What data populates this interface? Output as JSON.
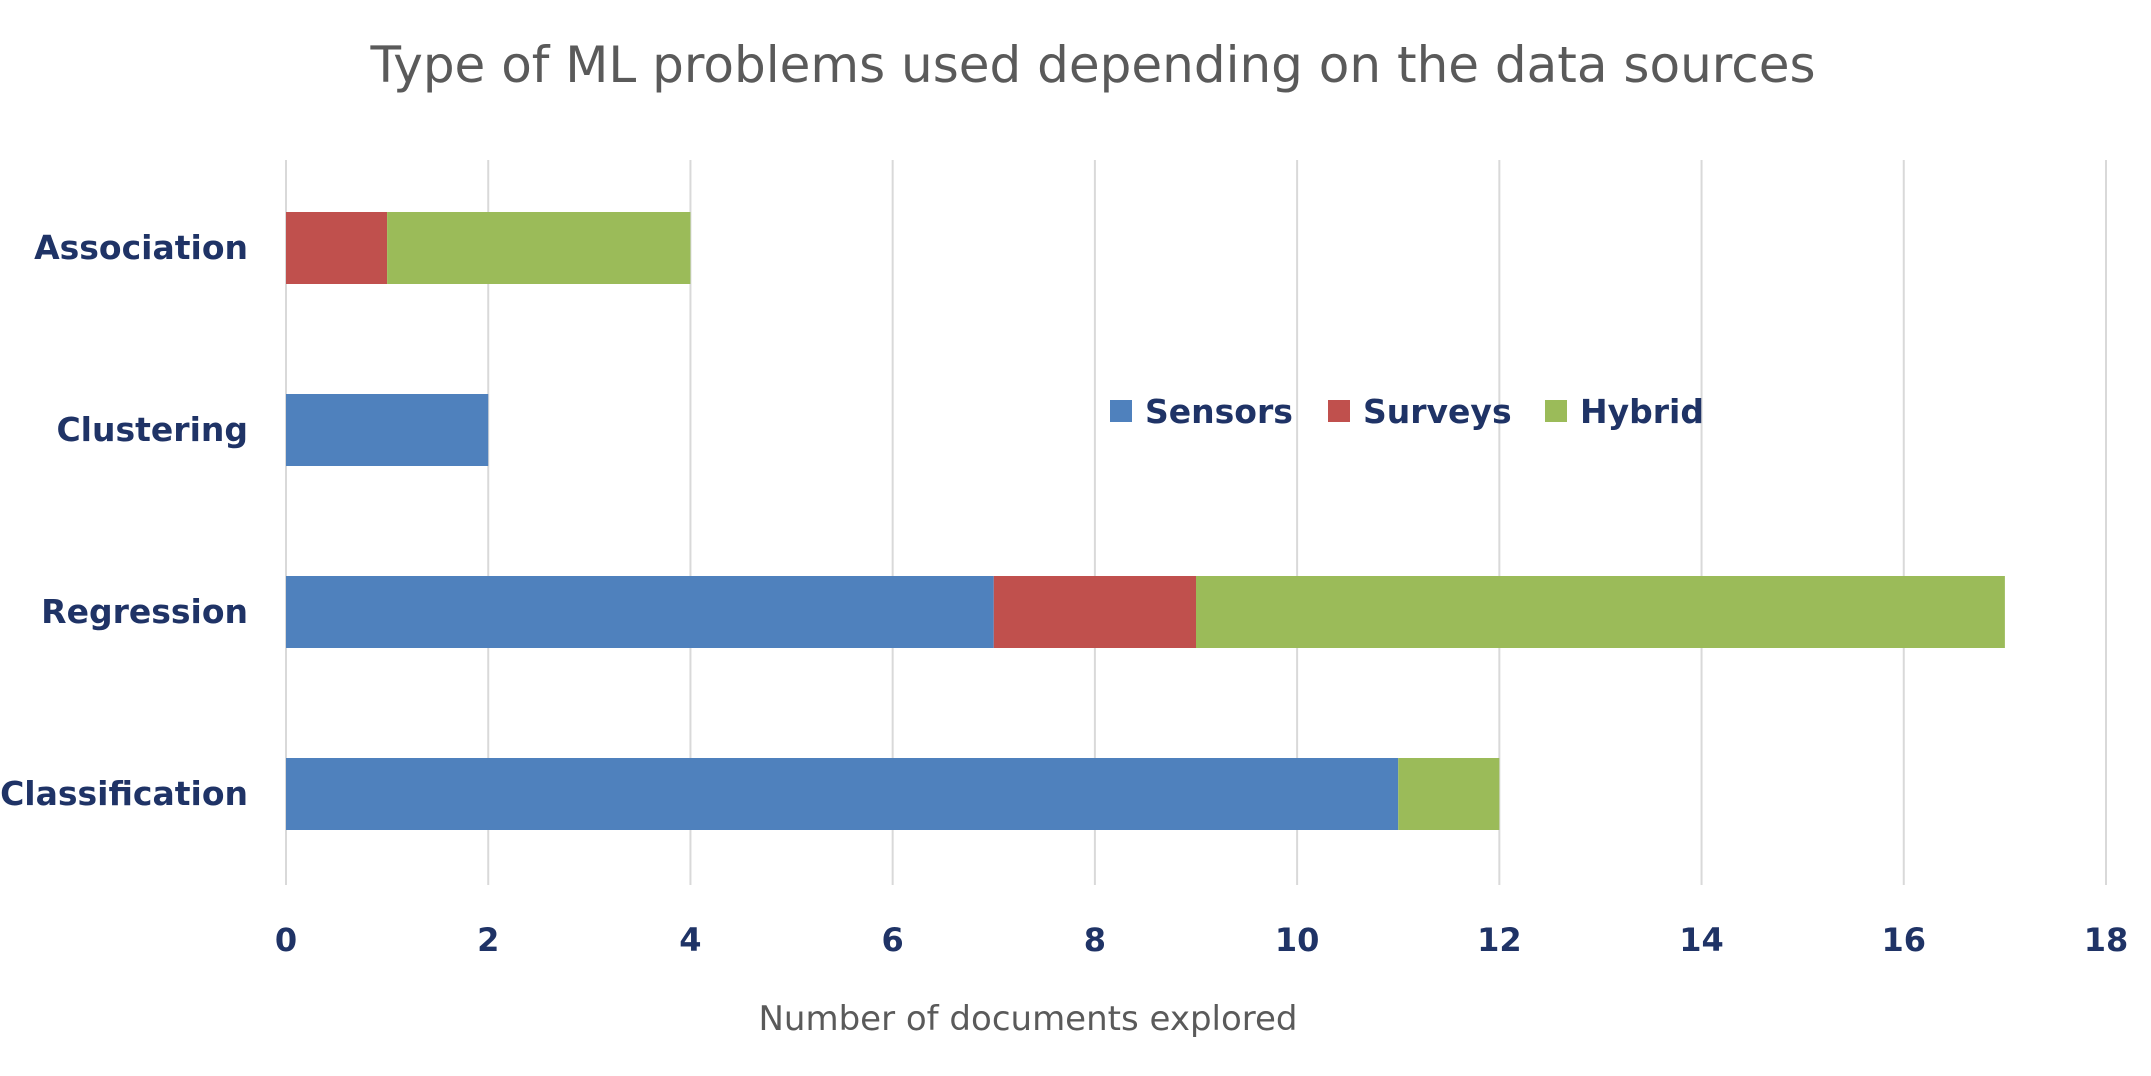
{
  "chart_data": {
    "type": "bar",
    "orientation": "horizontal",
    "stacked": true,
    "title": "Type of ML problems used depending on the data sources",
    "xlabel": "Number of documents explored",
    "ylabel": "",
    "categories": [
      "Association",
      "Clustering",
      "Regression",
      "Classification"
    ],
    "series": [
      {
        "name": "Sensors",
        "color": "#4f81bd",
        "values": [
          0,
          2,
          7,
          11
        ]
      },
      {
        "name": "Surveys",
        "color": "#c0504d",
        "values": [
          1,
          0,
          2,
          0
        ]
      },
      {
        "name": "Hybrid",
        "color": "#9bbb59",
        "values": [
          3,
          0,
          8,
          1
        ]
      }
    ],
    "xlim": [
      0,
      18
    ],
    "xticks": [
      "0",
      "2",
      "4",
      "6",
      "8",
      "10",
      "12",
      "14",
      "16",
      "18"
    ],
    "grid": "vertical",
    "legend_position": "inside-top-right"
  }
}
